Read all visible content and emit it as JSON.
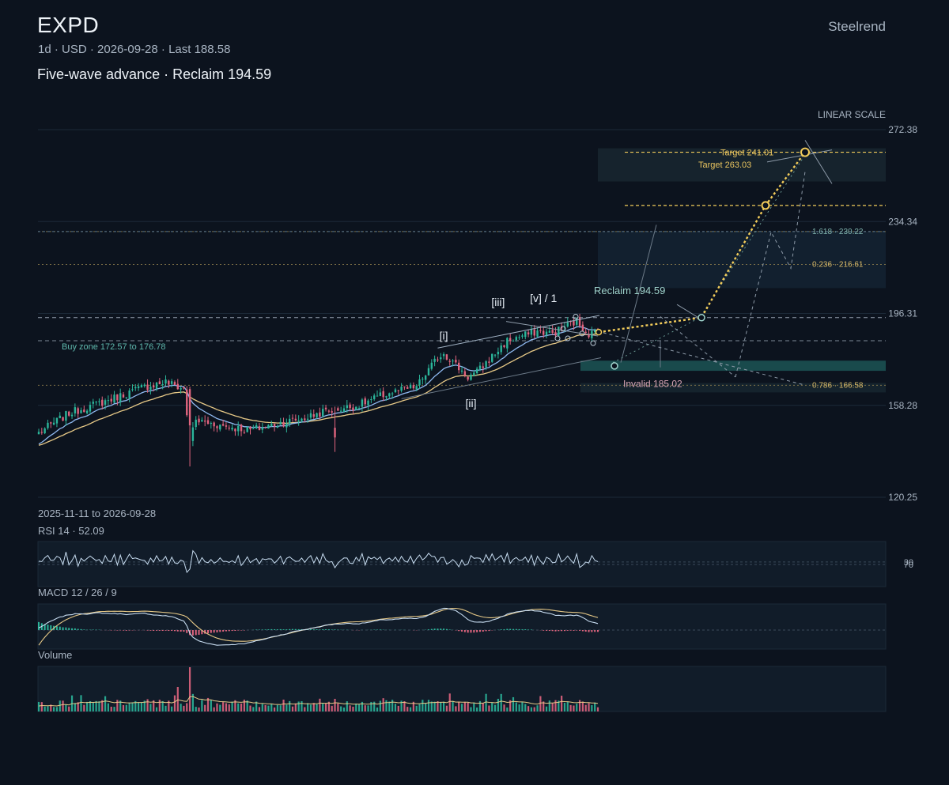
{
  "header": {
    "ticker": "EXPD",
    "meta": "1d · USD · 2026-09-28 · Last 188.58",
    "subtitle": "Five-wave advance · Reclaim 194.59",
    "brand": "Steelrend"
  },
  "colors": {
    "background": "#0c131e",
    "up": "#2bb59a",
    "down": "#e0647e",
    "ema_fast": "#8fb9f0",
    "ema_slow": "#e7c987",
    "projection": "#f2cc5a",
    "zone": "#2a8f86",
    "grid": "#1c2a38"
  },
  "chart_data": {
    "type": "candlestick",
    "date_range": "2025-11-11 to 2026-09-28",
    "scale_label": "LINEAR SCALE",
    "y_ticks": [
      272.38,
      234.34,
      196.31,
      158.28,
      120.25
    ],
    "ylim": [
      120.25,
      272.38
    ],
    "last_price": 188.58,
    "price_anchors": [
      {
        "t": 0,
        "p": 147
      },
      {
        "t": 10,
        "p": 155
      },
      {
        "t": 22,
        "p": 160
      },
      {
        "t": 35,
        "p": 166
      },
      {
        "t": 42,
        "p": 168
      },
      {
        "t": 48,
        "p": 165
      },
      {
        "t": 50,
        "p": 144
      },
      {
        "t": 52,
        "p": 152
      },
      {
        "t": 60,
        "p": 150
      },
      {
        "t": 70,
        "p": 148
      },
      {
        "t": 80,
        "p": 151
      },
      {
        "t": 88,
        "p": 153
      },
      {
        "t": 95,
        "p": 156
      },
      {
        "t": 105,
        "p": 158
      },
      {
        "t": 115,
        "p": 163
      },
      {
        "t": 125,
        "p": 166
      },
      {
        "t": 132,
        "p": 178
      },
      {
        "t": 134,
        "p": 180
      },
      {
        "t": 142,
        "p": 170
      },
      {
        "t": 145,
        "p": 172
      },
      {
        "t": 155,
        "p": 185
      },
      {
        "t": 165,
        "p": 189
      },
      {
        "t": 170,
        "p": 188
      },
      {
        "t": 174,
        "p": 191
      },
      {
        "t": 178,
        "p": 193
      },
      {
        "t": 182,
        "p": 188
      },
      {
        "t": 185,
        "p": 188.58
      }
    ],
    "wave_labels": [
      {
        "label": "[i]",
        "t": 134,
        "p": 185.5
      },
      {
        "label": "[ii]",
        "t": 143,
        "p": 157.5
      },
      {
        "label": "[iii]",
        "t": 152,
        "p": 199.5
      },
      {
        "label": "[v] / 1",
        "t": 167,
        "p": 201
      }
    ],
    "levels": [
      {
        "label": "1.618 · 230.22",
        "price": 230.22,
        "style": "fib"
      },
      {
        "label": "0.236 · 216.61",
        "price": 216.61,
        "style": "fib"
      },
      {
        "label": "0.786 · 166.58",
        "price": 166.58,
        "style": "fib"
      },
      {
        "label": "Reclaim 194.59",
        "price": 194.59,
        "style": "reclaim"
      },
      {
        "label": "Invalid 185.02",
        "price": 185.02,
        "style": "invalid"
      }
    ],
    "targets": [
      {
        "label": "Target 241.01",
        "price": 241.01
      },
      {
        "label": "Target 263.03",
        "price": 263.03
      }
    ],
    "buy_zone": {
      "label": "Buy zone 172.57 to 176.78",
      "low": 172.57,
      "high": 176.78
    },
    "rsi": {
      "label": "RSI 14 · 52.09",
      "value": 52.09,
      "levels": [
        70,
        30
      ]
    },
    "macd": {
      "label": "MACD 12 / 26 / 9"
    },
    "volume": {
      "label": "Volume"
    }
  }
}
